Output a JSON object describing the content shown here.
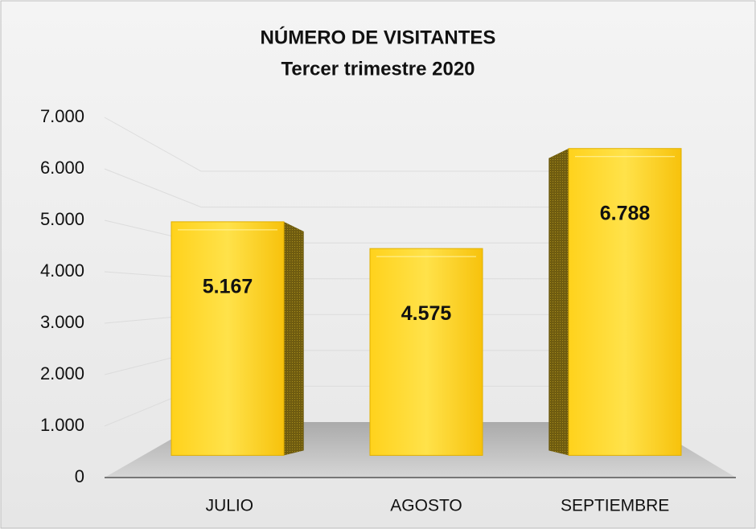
{
  "chart_data": {
    "type": "bar3d",
    "title": "NÚMERO DE VISITANTES",
    "subtitle": "Tercer trimestre 2020",
    "categories": [
      "JULIO",
      "AGOSTO",
      "SEPTIEMBRE"
    ],
    "values": [
      5167,
      4575,
      6788
    ],
    "value_labels": [
      "5.167",
      "4.575",
      "6.788"
    ],
    "color": "#ffd42a",
    "ylim": [
      0,
      7000
    ],
    "yticks": [
      0,
      {
        "value": 1000,
        "label": "1.000"
      },
      {
        "value": 2000,
        "label": "2.000"
      },
      {
        "value": 3000,
        "label": "3.000"
      },
      {
        "value": 4000,
        "label": "4.000"
      },
      {
        "value": 5000,
        "label": "5.000"
      },
      {
        "value": 6000,
        "label": "6.000"
      },
      {
        "value": 7000,
        "label": "7.000"
      }
    ],
    "grid": true
  }
}
